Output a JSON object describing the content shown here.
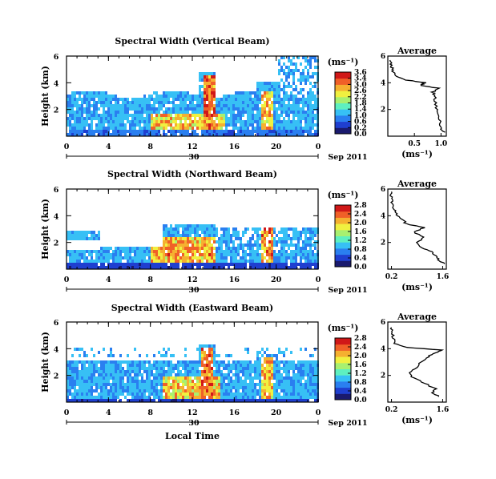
{
  "colors": {
    "colormap": [
      "#1a1a6e",
      "#1f3fd0",
      "#2a7ff0",
      "#37c0f5",
      "#5ef0c0",
      "#a8f070",
      "#f0f040",
      "#f5b030",
      "#f06028",
      "#d01818"
    ],
    "line": "#000000"
  },
  "common": {
    "ylabel": "Height (km)",
    "units": "(ms⁻¹)",
    "date_label": "Sep 2011",
    "day_label": "30",
    "xlabel": "Local Time",
    "avg_title": "Average",
    "avg_xlabel": "(ms⁻¹)"
  },
  "chart_data": [
    {
      "type": "heatmap",
      "title": "Spectral Width (Vertical Beam)",
      "x_ticks": [
        "0",
        "4",
        "8",
        "12",
        "16",
        "20",
        "0"
      ],
      "y_ticks": [
        "6",
        "4",
        "2"
      ],
      "xlim": [
        0,
        24
      ],
      "ylim": [
        0,
        6
      ],
      "colorbar_ticks": [
        "3.6",
        "3.4",
        "3.0",
        "2.6",
        "2.2",
        "1.8",
        "1.4",
        "1.0",
        "0.6",
        "0.2",
        "0.0"
      ],
      "colorbar_range": [
        0,
        3.6
      ],
      "avg_profile": {
        "type": "line",
        "x_ticks": [
          "0.5",
          "1.0"
        ],
        "xlim": [
          0,
          1.1
        ],
        "y_ticks": [
          "6",
          "4",
          "2"
        ],
        "ylim": [
          0,
          6
        ],
        "height": [
          0.3,
          0.6,
          1.0,
          1.5,
          2.0,
          2.5,
          3.0,
          3.3,
          3.6,
          3.8,
          4.0,
          4.2,
          4.5,
          4.8,
          5.1,
          5.4,
          5.7
        ],
        "value": [
          1.05,
          1.0,
          0.98,
          0.95,
          0.92,
          0.9,
          0.88,
          0.85,
          0.95,
          0.6,
          0.7,
          0.35,
          0.15,
          0.1,
          0.08,
          0.06,
          0.04
        ]
      }
    },
    {
      "type": "heatmap",
      "title": "Spectral Width (Northward Beam)",
      "x_ticks": [
        "0",
        "4",
        "8",
        "12",
        "16",
        "20",
        "0"
      ],
      "y_ticks": [
        "6",
        "4",
        "2"
      ],
      "xlim": [
        0,
        24
      ],
      "ylim": [
        0,
        6
      ],
      "colorbar_ticks": [
        "2.8",
        "2.4",
        "2.0",
        "1.6",
        "1.2",
        "0.8",
        "0.4",
        "0.0"
      ],
      "colorbar_range": [
        0,
        2.8
      ],
      "avg_profile": {
        "type": "line",
        "x_ticks": [
          "0.2",
          "1.6"
        ],
        "xlim": [
          0.1,
          1.7
        ],
        "y_ticks": [
          "6",
          "4",
          "2"
        ],
        "ylim": [
          0,
          6
        ],
        "height": [
          0.4,
          0.7,
          1.0,
          1.3,
          1.6,
          2.0,
          2.4,
          2.8,
          3.1,
          3.4,
          3.7,
          4.0,
          4.3,
          4.6,
          5.0,
          5.4,
          5.8
        ],
        "value": [
          1.65,
          1.5,
          1.4,
          1.3,
          1.0,
          0.9,
          1.1,
          0.8,
          1.1,
          0.6,
          0.5,
          0.35,
          0.3,
          0.25,
          0.22,
          0.2,
          0.2
        ]
      }
    },
    {
      "type": "heatmap",
      "title": "Spectral Width (Eastward Beam)",
      "x_ticks": [
        "0",
        "4",
        "8",
        "12",
        "16",
        "20",
        "0"
      ],
      "y_ticks": [
        "6",
        "4",
        "2"
      ],
      "xlim": [
        0,
        24
      ],
      "ylim": [
        0,
        6
      ],
      "colorbar_ticks": [
        "2.8",
        "2.4",
        "2.0",
        "1.6",
        "1.2",
        "0.8",
        "0.4",
        "0.0"
      ],
      "colorbar_range": [
        0,
        2.8
      ],
      "avg_profile": {
        "type": "line",
        "x_ticks": [
          "0.2",
          "1.6"
        ],
        "xlim": [
          0.1,
          1.7
        ],
        "y_ticks": [
          "6",
          "4",
          "2"
        ],
        "ylim": [
          0,
          6
        ],
        "height": [
          0.4,
          0.7,
          1.0,
          1.4,
          1.8,
          2.2,
          2.6,
          3.0,
          3.4,
          3.7,
          3.9,
          4.1,
          4.4,
          4.8,
          5.2,
          5.6
        ],
        "value": [
          1.5,
          1.3,
          1.4,
          1.1,
          0.8,
          0.7,
          0.9,
          1.0,
          1.2,
          1.4,
          1.6,
          0.6,
          0.3,
          0.25,
          0.22,
          0.2
        ]
      }
    }
  ]
}
